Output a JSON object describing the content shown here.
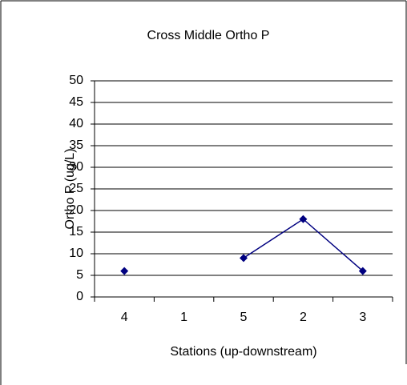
{
  "chart_data": {
    "type": "line",
    "title": "Cross Middle Ortho P",
    "x_label": "Stations (up-downstream)",
    "y_label": "Ortho P (ug/L)",
    "categories": [
      "4",
      "1",
      "5",
      "2",
      "3"
    ],
    "series": [
      {
        "name": "Ortho P",
        "color": "#000080",
        "values": [
          6,
          null,
          9,
          18,
          6
        ]
      }
    ],
    "ylim": [
      0,
      50
    ],
    "yticks": [
      0,
      5,
      10,
      15,
      20,
      25,
      30,
      35,
      40,
      45,
      50
    ],
    "grid": true
  }
}
